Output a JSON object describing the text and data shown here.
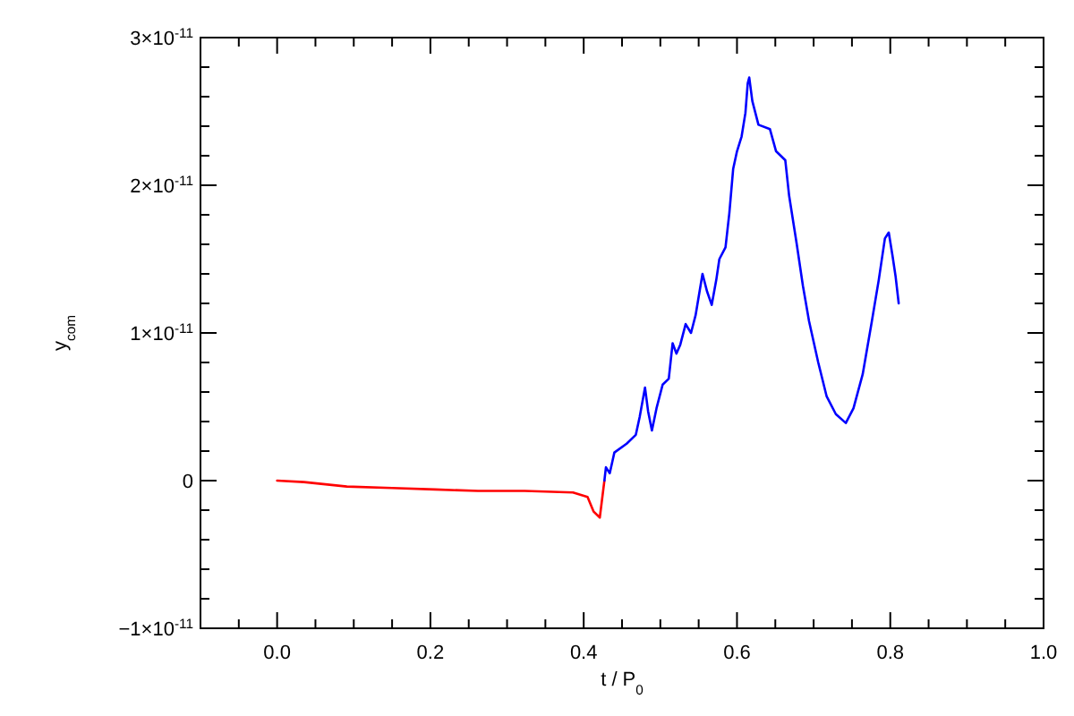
{
  "chart_data": {
    "type": "line",
    "xlabel": "t / P$_{0}$",
    "ylabel": "y$_{com}$",
    "xlim": [
      -0.1,
      1.0
    ],
    "xticks": [
      {
        "value": -0.05,
        "label": null
      },
      {
        "value": 0,
        "label": "0.0"
      },
      {
        "value": 0.05,
        "label": null
      },
      {
        "value": 0.1,
        "label": null
      },
      {
        "value": 0.15,
        "label": null
      },
      {
        "value": 0.2,
        "label": "0.2"
      },
      {
        "value": 0.25,
        "label": null
      },
      {
        "value": 0.3,
        "label": null
      },
      {
        "value": 0.35,
        "label": null
      },
      {
        "value": 0.4,
        "label": "0.4"
      },
      {
        "value": 0.45,
        "label": null
      },
      {
        "value": 0.5,
        "label": null
      },
      {
        "value": 0.55,
        "label": null
      },
      {
        "value": 0.6,
        "label": "0.6"
      },
      {
        "value": 0.65,
        "label": null
      },
      {
        "value": 0.7,
        "label": null
      },
      {
        "value": 0.75,
        "label": null
      },
      {
        "value": 0.8,
        "label": "0.8"
      },
      {
        "value": 0.85,
        "label": null
      },
      {
        "value": 0.9,
        "label": null
      },
      {
        "value": 0.95,
        "label": null
      },
      {
        "value": 1.0,
        "label": "1.0"
      }
    ],
    "ylim": [
      -1e-11,
      3e-11
    ],
    "yticks": [
      {
        "value": -1e-11,
        "label": "−1×10$^{-11}$"
      },
      {
        "value": -8e-12,
        "label": null
      },
      {
        "value": -6e-12,
        "label": null
      },
      {
        "value": -4e-12,
        "label": null
      },
      {
        "value": -2e-12,
        "label": null
      },
      {
        "value": 0,
        "label": "0"
      },
      {
        "value": 2e-12,
        "label": null
      },
      {
        "value": 4e-12,
        "label": null
      },
      {
        "value": 6e-12,
        "label": null
      },
      {
        "value": 8e-12,
        "label": null
      },
      {
        "value": 1e-11,
        "label": "1×10$^{-11}$"
      },
      {
        "value": 1.2e-11,
        "label": null
      },
      {
        "value": 1.4e-11,
        "label": null
      },
      {
        "value": 1.6e-11,
        "label": null
      },
      {
        "value": 1.8e-11,
        "label": null
      },
      {
        "value": 2e-11,
        "label": "2×10$^{-11}$"
      },
      {
        "value": 2.2e-11,
        "label": null
      },
      {
        "value": 2.4e-11,
        "label": null
      },
      {
        "value": 2.6e-11,
        "label": null
      },
      {
        "value": 2.8e-11,
        "label": null
      },
      {
        "value": 3e-11,
        "label": "3×10$^{-11}$"
      }
    ],
    "grid": false,
    "marker": "none",
    "line_style": "solid",
    "series": [
      {
        "color": "#ff0000",
        "x": [
          0,
          0.035,
          0.091,
          0.15,
          0.206,
          0.262,
          0.323,
          0.386,
          0.405,
          0.413,
          0.421,
          0.427
        ],
        "values": [
          0,
          -1e-13,
          -4e-13,
          -5e-13,
          -6e-13,
          -7e-13,
          -7e-13,
          -8e-13,
          -1.1e-12,
          -2.1e-12,
          -2.5e-12,
          0
        ]
      },
      {
        "color": "#0000ff",
        "x": [
          0.427,
          0.429,
          0.434,
          0.44,
          0.456,
          0.468,
          0.473,
          0.48,
          0.484,
          0.489,
          0.495,
          0.503,
          0.511,
          0.516,
          0.521,
          0.526,
          0.533,
          0.54,
          0.546,
          0.555,
          0.561,
          0.567,
          0.573,
          0.577,
          0.585,
          0.59,
          0.595,
          0.6,
          0.606,
          0.611,
          0.614,
          0.616,
          0.62,
          0.628,
          0.643,
          0.651,
          0.663,
          0.668,
          0.678,
          0.686,
          0.694,
          0.706,
          0.717,
          0.729,
          0.742,
          0.752,
          0.764,
          0.776,
          0.785,
          0.793,
          0.798,
          0.803,
          0.807,
          0.811
        ],
        "values": [
          0,
          9e-13,
          5e-13,
          1.9e-12,
          2.5e-12,
          3.1e-12,
          4.3e-12,
          6.3e-12,
          4.7e-12,
          3.4e-12,
          4.9e-12,
          6.5e-12,
          6.9e-12,
          9.3e-12,
          8.6e-12,
          9.2e-12,
          1.06e-11,
          1e-11,
          1.12e-11,
          1.4e-11,
          1.28e-11,
          1.19e-11,
          1.36e-11,
          1.5e-11,
          1.58e-11,
          1.81e-11,
          2.11e-11,
          2.23e-11,
          2.33e-11,
          2.49e-11,
          2.69e-11,
          2.73e-11,
          2.57e-11,
          2.41e-11,
          2.38e-11,
          2.23e-11,
          2.17e-11,
          1.93e-11,
          1.6e-11,
          1.32e-11,
          1.08e-11,
          8e-12,
          5.7e-12,
          4.5e-12,
          3.9e-12,
          4.9e-12,
          7.2e-12,
          1.08e-11,
          1.36e-11,
          1.64e-11,
          1.68e-11,
          1.52e-11,
          1.38e-11,
          1.2e-11
        ]
      }
    ]
  }
}
